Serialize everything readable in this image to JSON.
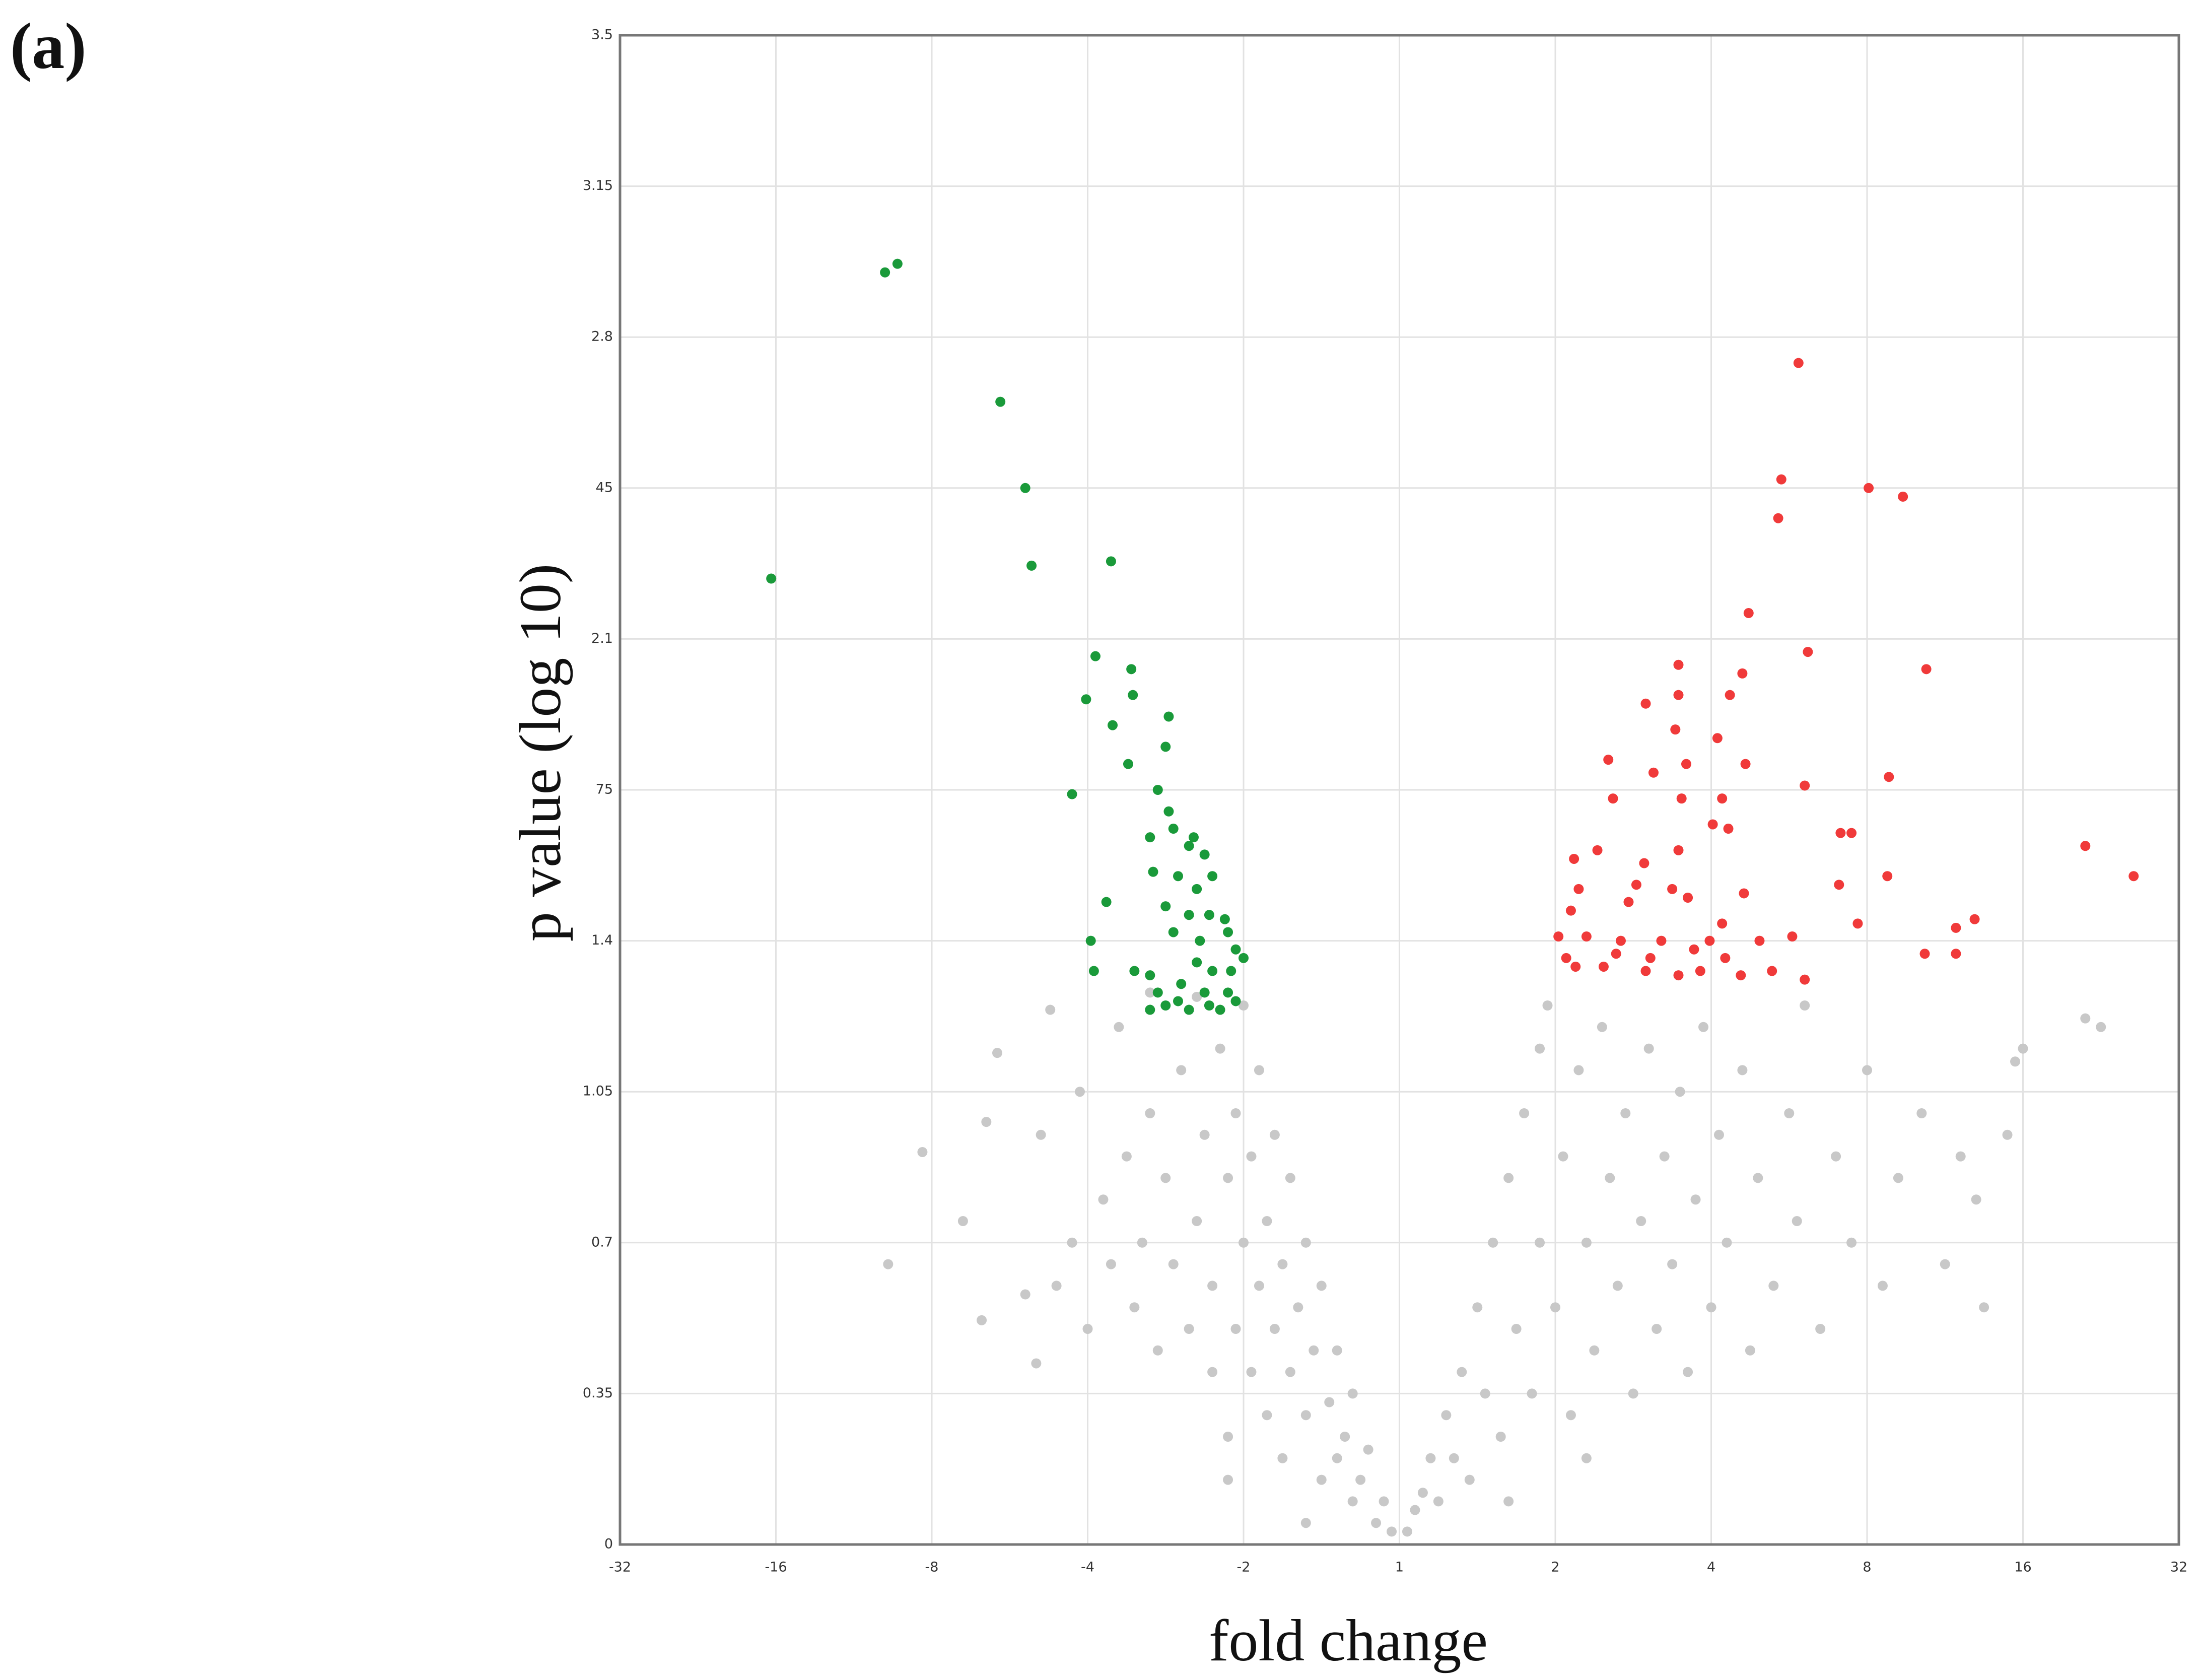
{
  "label": "(a)",
  "chart_data": {
    "type": "scatter",
    "xlabel": "fold change",
    "ylabel": "p value (log 10)",
    "xlim": [
      -5,
      5
    ],
    "xticks": [
      {
        "value": -5,
        "label": "-32"
      },
      {
        "value": -4,
        "label": "-16"
      },
      {
        "value": -3,
        "label": "-8"
      },
      {
        "value": -2,
        "label": "-4"
      },
      {
        "value": -1,
        "label": "-2"
      },
      {
        "value": 0,
        "label": "1"
      },
      {
        "value": 1,
        "label": "2"
      },
      {
        "value": 2,
        "label": "4"
      },
      {
        "value": 3,
        "label": "8"
      },
      {
        "value": 4,
        "label": "16"
      },
      {
        "value": 5,
        "label": "32"
      }
    ],
    "ylim": [
      0,
      3.5
    ],
    "yticks": [
      0,
      0.35,
      0.7,
      1.05,
      1.4,
      {
        "value": 1.75,
        "label": "75"
      },
      2.1,
      {
        "value": 2.45,
        "label": "45"
      },
      2.8,
      3.15,
      3.5
    ],
    "grid": true,
    "series": [
      {
        "color": "#c8c8c8",
        "x": [
          -0.05,
          -0.1,
          -0.15,
          -0.2,
          -0.25,
          -0.3,
          -0.3,
          -0.35,
          -0.4,
          -0.4,
          -0.45,
          -0.5,
          -0.5,
          -0.55,
          -0.6,
          -0.6,
          -0.65,
          -0.7,
          -0.7,
          -0.75,
          -0.75,
          -0.8,
          -0.8,
          -0.85,
          -0.85,
          -0.9,
          -0.9,
          -0.95,
          -0.95,
          -1.0,
          -1.0,
          -1.05,
          -1.05,
          -1.1,
          -1.1,
          -1.15,
          -1.2,
          -1.2,
          -1.25,
          -1.3,
          -1.35,
          -1.4,
          -1.45,
          -1.5,
          -1.55,
          -1.6,
          -1.65,
          -1.7,
          -1.75,
          -1.8,
          -1.85,
          -1.9,
          -2.0,
          -2.05,
          -2.1,
          -2.2,
          -2.3,
          -2.4,
          -2.58,
          -2.24,
          -2.68,
          -2.33,
          -3.06,
          -3.28,
          -2.8,
          -2.65,
          -1.6,
          -1.3,
          -1.1,
          -0.6,
          0.05,
          0.1,
          0.15,
          0.2,
          0.25,
          0.3,
          0.35,
          0.4,
          0.45,
          0.5,
          0.55,
          0.6,
          0.65,
          0.7,
          0.75,
          0.8,
          0.85,
          0.9,
          0.9,
          0.95,
          1.0,
          1.05,
          1.1,
          1.15,
          1.2,
          1.25,
          1.3,
          1.35,
          1.4,
          1.45,
          1.5,
          1.55,
          1.6,
          1.65,
          1.7,
          1.75,
          1.8,
          1.85,
          1.9,
          1.95,
          2.0,
          2.05,
          2.1,
          2.2,
          2.25,
          2.3,
          2.4,
          2.5,
          2.55,
          2.6,
          2.7,
          2.8,
          2.9,
          3.0,
          3.1,
          3.2,
          3.35,
          3.5,
          3.6,
          3.75,
          3.9,
          3.95,
          4.0,
          4.4,
          4.5,
          3.7,
          1.2,
          0.7
        ],
        "y": [
          0.03,
          0.1,
          0.05,
          0.22,
          0.15,
          0.35,
          0.1,
          0.25,
          0.45,
          0.2,
          0.33,
          0.6,
          0.15,
          0.45,
          0.7,
          0.3,
          0.55,
          0.85,
          0.4,
          0.2,
          0.65,
          0.95,
          0.5,
          0.3,
          0.75,
          1.1,
          0.6,
          0.9,
          0.4,
          1.25,
          0.7,
          0.5,
          1.0,
          0.25,
          0.85,
          1.15,
          0.6,
          0.4,
          0.95,
          0.75,
          0.5,
          1.1,
          0.65,
          0.85,
          0.45,
          1.0,
          0.7,
          0.55,
          0.9,
          1.2,
          0.65,
          0.8,
          0.5,
          1.05,
          0.7,
          0.6,
          0.95,
          0.58,
          1.14,
          1.24,
          0.52,
          0.42,
          0.91,
          0.65,
          0.75,
          0.98,
          1.28,
          1.27,
          0.15,
          0.05,
          0.03,
          0.08,
          0.12,
          0.2,
          0.1,
          0.3,
          0.2,
          0.4,
          0.15,
          0.55,
          0.35,
          0.7,
          0.25,
          0.85,
          0.5,
          1.0,
          0.35,
          1.15,
          0.7,
          1.25,
          0.55,
          0.9,
          0.3,
          1.1,
          0.7,
          0.45,
          1.2,
          0.85,
          0.6,
          1.0,
          0.35,
          0.75,
          1.15,
          0.5,
          0.9,
          0.65,
          1.05,
          0.4,
          0.8,
          1.2,
          0.55,
          0.95,
          0.7,
          1.1,
          0.45,
          0.85,
          0.6,
          1.0,
          0.75,
          1.25,
          0.5,
          0.9,
          0.7,
          1.1,
          0.6,
          0.85,
          1.0,
          0.65,
          0.9,
          0.55,
          0.95,
          1.12,
          1.15,
          1.22,
          1.2,
          0.8,
          0.2,
          0.1
        ]
      },
      {
        "color": "#1a9a3a",
        "x": [
          -4.03,
          -3.3,
          -3.22,
          -2.56,
          -2.4,
          -2.36,
          -1.85,
          -1.95,
          -1.72,
          -2.01,
          -1.71,
          -1.48,
          -1.84,
          -1.74,
          -1.5,
          -2.1,
          -1.55,
          -1.48,
          -1.45,
          -1.32,
          -1.6,
          -1.58,
          -1.35,
          -1.25,
          -1.42,
          -1.3,
          -1.2,
          -1.88,
          -1.5,
          -1.35,
          -1.22,
          -1.12,
          -1.98,
          -1.45,
          -1.28,
          -1.1,
          -1.05,
          -1.96,
          -1.7,
          -1.6,
          -1.3,
          -1.2,
          -1.08,
          -1.0,
          -1.55,
          -1.4,
          -1.25,
          -1.1,
          -1.5,
          -1.35,
          -1.22,
          -1.15,
          -1.05,
          -1.6,
          -1.42
        ],
        "y": [
          2.24,
          2.95,
          2.97,
          2.65,
          2.45,
          2.27,
          2.28,
          2.06,
          2.03,
          1.96,
          1.97,
          1.92,
          1.9,
          1.81,
          1.85,
          1.74,
          1.75,
          1.7,
          1.66,
          1.64,
          1.64,
          1.56,
          1.62,
          1.6,
          1.55,
          1.52,
          1.55,
          1.49,
          1.48,
          1.46,
          1.46,
          1.45,
          1.4,
          1.42,
          1.4,
          1.42,
          1.38,
          1.33,
          1.33,
          1.32,
          1.35,
          1.33,
          1.33,
          1.36,
          1.28,
          1.3,
          1.28,
          1.28,
          1.25,
          1.24,
          1.25,
          1.24,
          1.26,
          1.24,
          1.26
        ]
      },
      {
        "color": "#f03a3a",
        "x": [
          2.56,
          2.45,
          2.43,
          3.01,
          3.23,
          2.24,
          2.62,
          3.38,
          1.79,
          2.2,
          1.58,
          1.79,
          2.12,
          1.77,
          2.04,
          1.34,
          1.63,
          1.84,
          2.22,
          2.6,
          3.14,
          1.37,
          1.81,
          2.07,
          2.01,
          2.11,
          2.83,
          2.9,
          4.4,
          4.71,
          1.27,
          1.12,
          1.57,
          1.79,
          1.15,
          1.52,
          1.75,
          1.85,
          2.21,
          2.82,
          3.13,
          1.1,
          1.47,
          2.94,
          3.69,
          3.57,
          1.02,
          1.2,
          1.42,
          1.68,
          1.99,
          2.07,
          2.31,
          2.52,
          3.37,
          3.57,
          1.07,
          1.39,
          1.61,
          1.89,
          2.09,
          1.31,
          1.58,
          1.79,
          1.93,
          2.19,
          2.39,
          2.6,
          1.13
        ],
        "y": [
          2.74,
          2.47,
          2.38,
          2.45,
          2.43,
          2.16,
          2.07,
          2.03,
          2.04,
          2.02,
          1.95,
          1.97,
          1.97,
          1.89,
          1.87,
          1.82,
          1.79,
          1.81,
          1.81,
          1.76,
          1.78,
          1.73,
          1.73,
          1.73,
          1.67,
          1.66,
          1.65,
          1.65,
          1.62,
          1.55,
          1.61,
          1.59,
          1.58,
          1.61,
          1.52,
          1.53,
          1.52,
          1.5,
          1.51,
          1.53,
          1.55,
          1.47,
          1.49,
          1.44,
          1.45,
          1.43,
          1.41,
          1.41,
          1.4,
          1.4,
          1.4,
          1.44,
          1.4,
          1.41,
          1.37,
          1.37,
          1.36,
          1.37,
          1.36,
          1.38,
          1.36,
          1.34,
          1.33,
          1.32,
          1.33,
          1.32,
          1.33,
          1.31,
          1.34
        ]
      }
    ]
  }
}
